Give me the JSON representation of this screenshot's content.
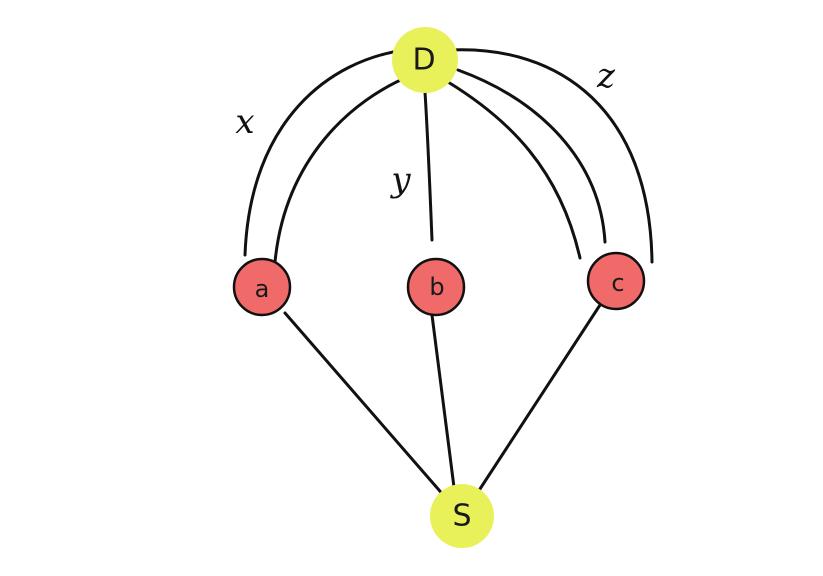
{
  "colors": {
    "endpoint_fill": "#e8f15a",
    "intermediate_fill": "#f06a6a",
    "intermediate_stroke": "#111111",
    "edge_color": "#111111"
  },
  "nodes": {
    "D": {
      "label": "D"
    },
    "a": {
      "label": "a"
    },
    "b": {
      "label": "b"
    },
    "c": {
      "label": "c"
    },
    "S": {
      "label": "S"
    }
  },
  "edge_labels": {
    "x": "x",
    "y": "y",
    "z": "z"
  }
}
